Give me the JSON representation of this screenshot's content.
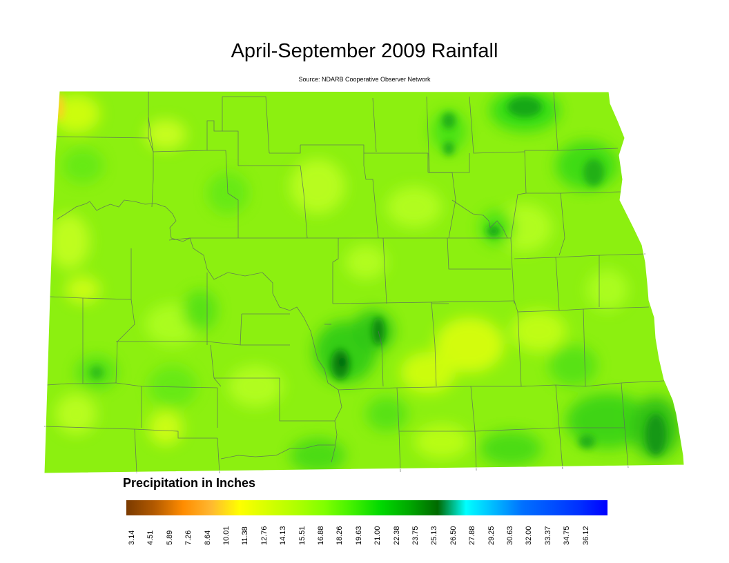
{
  "title": "April-September 2009 Rainfall",
  "subtitle": "Source: NDARB Cooperative Observer Network",
  "legend": {
    "title": "Precipitation in Inches",
    "ticks": [
      "3.14",
      "4.51",
      "5.89",
      "7.26",
      "8.64",
      "10.01",
      "11.38",
      "12.76",
      "14.13",
      "15.51",
      "16.88",
      "18.26",
      "19.63",
      "21.00",
      "22.38",
      "23.75",
      "25.13",
      "26.50",
      "27.88",
      "29.25",
      "30.63",
      "32.00",
      "33.37",
      "34.75",
      "36.12"
    ],
    "colors": [
      "#7a3a00",
      "#b35a00",
      "#ff8c00",
      "#ffb830",
      "#ffff00",
      "#d6ff00",
      "#b0ff00",
      "#80ff00",
      "#40f000",
      "#00d800",
      "#00a800",
      "#006a00",
      "#00ffff",
      "#00b8ff",
      "#0070ff",
      "#0050ff",
      "#0030ff",
      "#0000ff"
    ]
  },
  "map": {
    "base_color": "#8cf010",
    "region": "North Dakota"
  }
}
